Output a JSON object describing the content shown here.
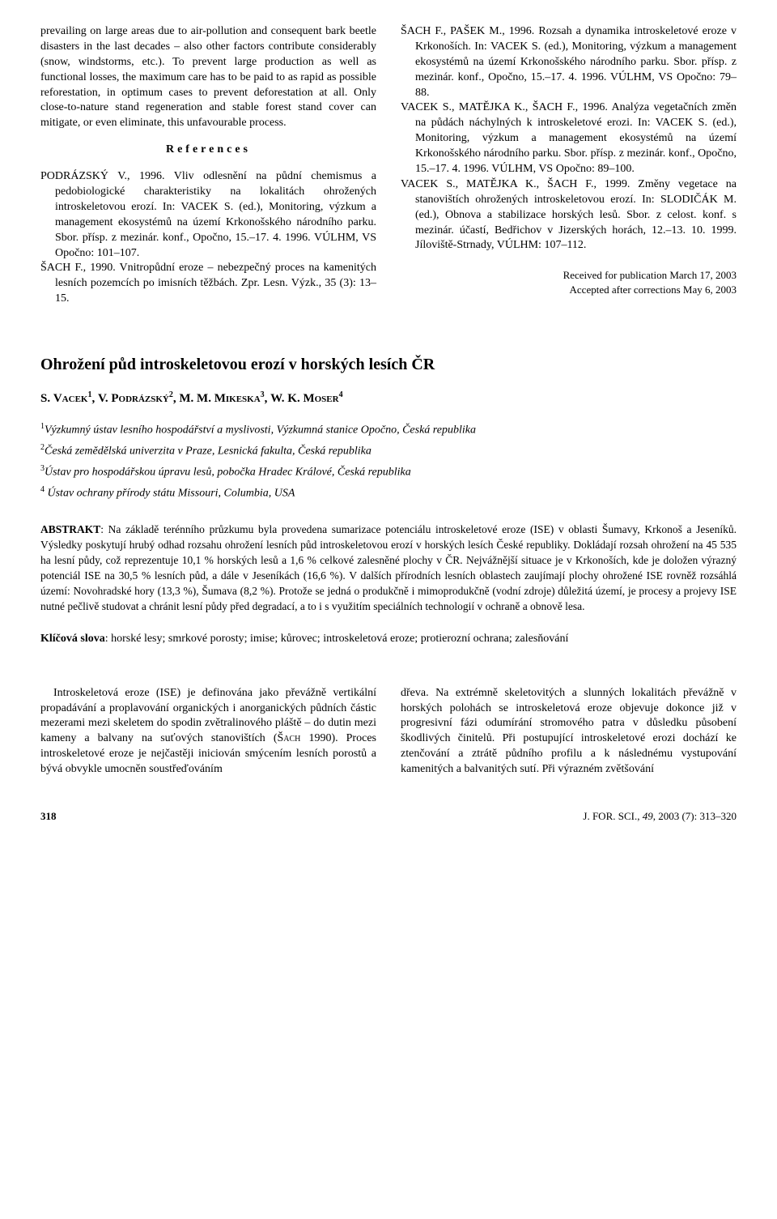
{
  "leftCol": {
    "para1": "prevailing on large areas due to air-pollution and consequent bark beetle disasters in the last decades – also other factors contribute considerably (snow, windstorms, etc.). To prevent large production as well as functional losses, the maximum care has to be paid to as rapid as possible reforestation, in optimum cases to prevent deforestation at all. Only close-to-nature stand regeneration and stable forest stand cover can mitigate, or even eliminate, this unfavourable process.",
    "refsHeading": "References",
    "ref1": "PODRÁZSKÝ V., 1996. Vliv odlesnění na půdní chemismus a pedobiologické charakteristiky na lokalitách ohrožených introskeletovou erozí. In: VACEK S. (ed.), Monitoring, výzkum a management ekosystémů na území Krkonošského národního parku. Sbor. přísp. z mezinár. konf., Opočno, 15.–17. 4. 1996. VÚLHM, VS Opočno: 101–107.",
    "ref2": "ŠACH F., 1990. Vnitropůdní eroze – nebezpečný proces na kamenitých lesních pozemcích po imisních těžbách. Zpr. Lesn. Výzk., 35 (3): 13–15."
  },
  "rightCol": {
    "ref3": "ŠACH F., PAŠEK M., 1996. Rozsah a dynamika introskeletové eroze v Krkonoších. In: VACEK S. (ed.), Monitoring, výzkum a management ekosystémů na území Krkonošského národního parku. Sbor. přísp. z mezinár. konf., Opočno, 15.–17. 4. 1996. VÚLHM, VS Opočno: 79–88.",
    "ref4": "VACEK S., MATĚJKA K., ŠACH F., 1996. Analýza vegetačních změn na půdách náchylných k introskeletové erozi. In: VACEK S. (ed.), Monitoring, výzkum a management ekosystémů na území Krkonošského národního parku. Sbor. přísp. z mezinár. konf., Opočno, 15.–17. 4. 1996. VÚLHM, VS Opočno: 89–100.",
    "ref5": "VACEK S., MATĚJKA K., ŠACH F., 1999. Změny vegetace na stanovištích ohrožených introskeletovou erozí. In: SLODIČÁK M. (ed.), Obnova a stabilizace horských lesů. Sbor. z celost. konf. s mezinár. účastí, Bedřichov v Jizerských horách, 12.–13. 10. 1999. Jíloviště-Strnady, VÚLHM: 107–112.",
    "received1": "Received for publication March 17, 2003",
    "received2": "Accepted after corrections May 6, 2003"
  },
  "czech": {
    "title": "Ohrožení půd introskeletovou erozí v horských lesích ČR",
    "authorsPrefix": "S. ",
    "author1": "Vacek",
    "author2": "V. Podrázský",
    "author3": "M. Mikeska",
    "author4": "W. K. Moser",
    "aff1": "Výzkumný ústav lesního hospodářství a myslivosti, Výzkumná stanice Opočno, Česká republika",
    "aff2": "Česká zemědělská univerzita v Praze, Lesnická fakulta, Česká republika",
    "aff3": "Ústav pro hospodářskou úpravu lesů, pobočka Hradec Králové, Česká republika",
    "aff4": " Ústav ochrany přírody státu Missouri, Columbia, USA",
    "abstractLabel": "ABSTRAKT",
    "abstractText": ": Na základě terénního průzkumu byla provedena sumarizace potenciálu introskeletové eroze (ISE) v oblasti Šumavy, Krkonoš a Jeseníků. Výsledky poskytují hrubý odhad rozsahu ohrožení lesních půd introskeletovou erozí v horských lesích České republiky. Dokládají rozsah ohrožení na 45 535 ha lesní půdy, což reprezentuje 10,1 % horských lesů a 1,6 % celkové zalesněné plochy v ČR. Nejvážnější situace je v Krkonoších, kde je doložen výrazný potenciál ISE na 30,5 % lesních půd, a dále v Jeseníkách (16,6 %). V dalších přírodních lesních oblastech zaujímají plochy ohrožené ISE rovněž rozsáhlá území: Novohradské hory (13,3 %), Šumava (8,2 %). Protože se jedná o produkčně i mimoprodukčně (vodní zdroje) důležitá území, je procesy a projevy ISE nutné pečlivě studovat a chránit lesní půdy před degradací, a to i s využitím speciálních technologií v ochraně a obnově lesa.",
    "keywordsLabel": "Klíčová slova",
    "keywordsText": ": horské lesy; smrkové porosty; imise; kůrovec; introskeletová eroze; protierozní ochrana; zalesňování",
    "bodyLeft": "Introskeletová eroze (ISE) je definována jako převážně vertikální propadávání a proplavování organických i anorganických půdních částic mezerami mezi skeletem do spodin zvětralinového pláště – do dutin mezi kameny a balvany na suťových stanovištích (",
    "bodyLeftCite": "Šach",
    "bodyLeftAfter": " 1990). Proces introskeletové eroze je nejčastěji iniciován smýcením lesních porostů a bývá obvykle umocněn soustřeďováním",
    "bodyRight": "dřeva. Na extrémně skeletovitých a slunných lokalitách převážně v horských polohách se introskeletová eroze objevuje dokonce již v progresivní fázi odumírání stromového patra v důsledku působení škodlivých činitelů. Při postupující introskeletové erozi dochází ke ztenčování a ztrátě půdního profilu a k následnému vystupování kamenitých a balvanitých sutí. Při výrazném zvětšování"
  },
  "footer": {
    "page": "318",
    "journalPrefix": "J. FOR. SCI., ",
    "vol": "49",
    "rest": ", 2003 (7): 313–320"
  }
}
